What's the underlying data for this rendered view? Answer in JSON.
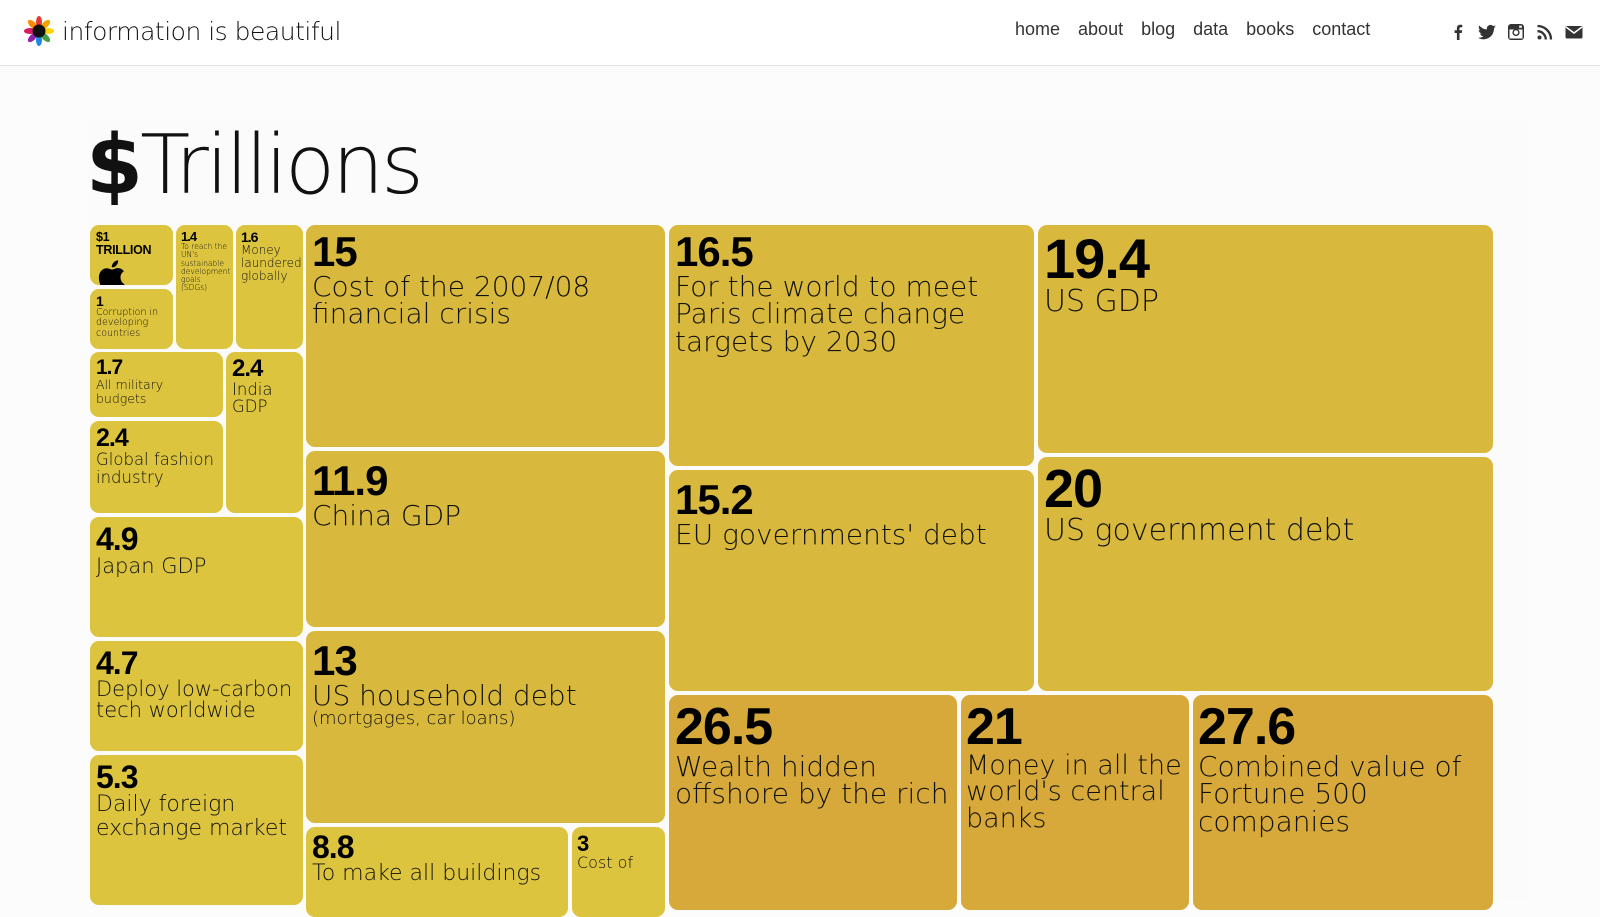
{
  "header": {
    "site_name": "information is beautiful",
    "nav": [
      "home",
      "about",
      "blog",
      "data",
      "books",
      "contact"
    ],
    "social_icons": [
      "facebook-icon",
      "twitter-icon",
      "instagram-icon",
      "rss-icon",
      "email-icon"
    ]
  },
  "page": {
    "title_symbol": "$",
    "title_word": "Trillions"
  },
  "colors": {
    "light_gold": "#dcc43f",
    "mid_gold": "#d8b93d",
    "deep_gold": "#d6a93a"
  },
  "tiles": {
    "apple": {
      "value": "$1 TRILLION",
      "icon": "apple-icon"
    },
    "corruption": {
      "value": "1",
      "label": "Corruption in developing countries"
    },
    "sdgs": {
      "value": "1.4",
      "label": "To reach the UN's sustainable development goals (SDGs)"
    },
    "laundered": {
      "value": "1.6",
      "label": "Money laundered globally"
    },
    "military": {
      "value": "1.7",
      "label": "All military budgets"
    },
    "india": {
      "value": "2.4",
      "label": "India GDP"
    },
    "fashion": {
      "value": "2.4",
      "label": "Global fashion industry"
    },
    "japan": {
      "value": "4.9",
      "label": "Japan GDP"
    },
    "lowcarbon": {
      "value": "4.7",
      "label": "Deploy low-carbon tech worldwide"
    },
    "forex": {
      "value": "5.3",
      "label": "Daily foreign exchange market"
    },
    "crisis": {
      "value": "15",
      "label": "Cost of the 2007/08 financial crisis"
    },
    "china": {
      "value": "11.9",
      "label": "China GDP"
    },
    "household": {
      "value": "13",
      "label": "US household debt",
      "sublabel": "(mortgages, car loans)"
    },
    "buildings": {
      "value": "8.8",
      "label": "To make all buildings"
    },
    "costof": {
      "value": "3",
      "label": "Cost of"
    },
    "paris": {
      "value": "16.5",
      "label": "For the world to meet Paris climate change targets by 2030"
    },
    "eu": {
      "value": "15.2",
      "label": "EU governments' debt"
    },
    "usgdp": {
      "value": "19.4",
      "label": "US GDP"
    },
    "usdebt": {
      "value": "20",
      "label": "US government debt"
    },
    "offshore": {
      "value": "26.5",
      "label": "Wealth hidden offshore by the rich"
    },
    "centralbanks": {
      "value": "21",
      "label": "Money in all the world's central banks"
    },
    "fortune": {
      "value": "27.6",
      "label": "Combined value of Fortune 500 companies"
    }
  }
}
